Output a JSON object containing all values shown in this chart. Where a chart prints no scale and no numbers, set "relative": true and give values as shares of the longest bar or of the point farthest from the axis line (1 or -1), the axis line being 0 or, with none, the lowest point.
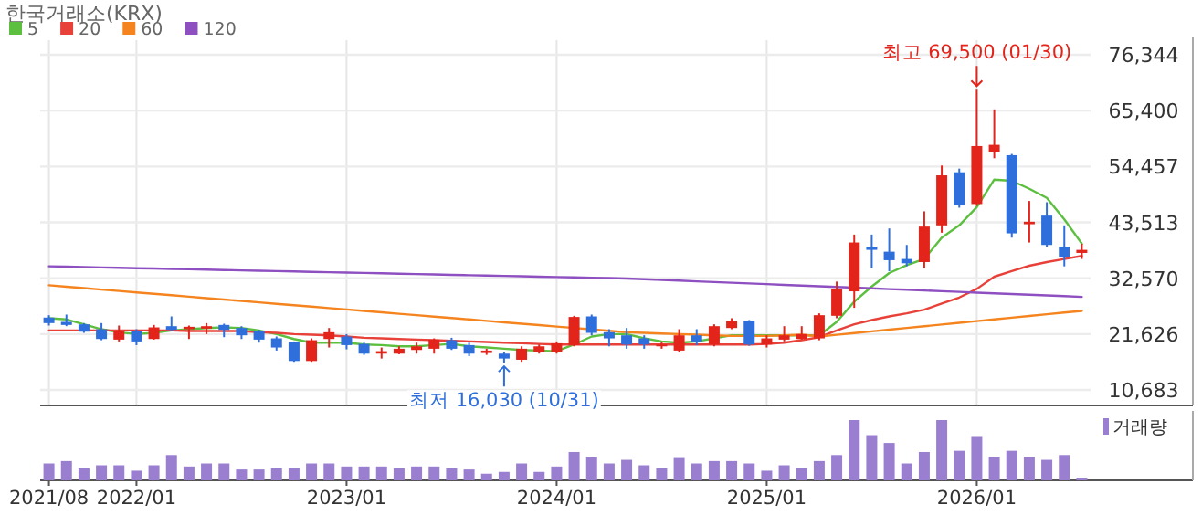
{
  "chart_data": [
    {
      "type": "candlestick",
      "title": "한국거래소(KRX)",
      "tick_labels": "y",
      "grid": true,
      "legend": "top left",
      "categories": [
        "2021/08",
        null,
        null,
        null,
        null,
        "2022/01",
        null,
        null,
        null,
        null,
        null,
        null,
        null,
        null,
        null,
        null,
        null,
        "2023/01",
        null,
        null,
        null,
        null,
        null,
        null,
        null,
        null,
        null,
        null,
        null,
        "2024/01",
        null,
        null,
        null,
        null,
        null,
        null,
        null,
        null,
        null,
        null,
        null,
        "2025/01",
        null,
        null,
        null,
        null,
        null,
        null,
        null,
        null,
        null,
        null,
        null,
        "2026/01",
        null,
        null,
        null,
        null,
        null,
        null
      ],
      "ylim": [
        7650,
        79200
      ],
      "yticks": [
        {
          "value": 10683,
          "label": "10,683"
        },
        {
          "value": 21626,
          "label": "21,626"
        },
        {
          "value": 32570,
          "label": "32,570"
        },
        {
          "value": 43513,
          "label": "43,513"
        },
        {
          "value": 54457,
          "label": "54,457"
        },
        {
          "value": 65400,
          "label": "65,400"
        },
        {
          "value": 76344,
          "label": "76,344"
        }
      ],
      "ohlc": [
        [
          24860,
          25330,
          23300,
          23780
        ],
        [
          24020,
          25450,
          23180,
          23420
        ],
        [
          23540,
          23780,
          21870,
          22100
        ],
        [
          22580,
          23780,
          20430,
          20670
        ],
        [
          20550,
          23300,
          20190,
          22220
        ],
        [
          22220,
          22580,
          19470,
          20190
        ],
        [
          20670,
          23420,
          20550,
          22940
        ],
        [
          23180,
          25090,
          22220,
          22460
        ],
        [
          22580,
          23300,
          20670,
          23060
        ],
        [
          22700,
          23780,
          21630,
          23180
        ],
        [
          23420,
          23660,
          21030,
          22460
        ],
        [
          22820,
          23180,
          20670,
          21390
        ],
        [
          22220,
          22460,
          19950,
          20550
        ],
        [
          20790,
          21150,
          18400,
          19000
        ],
        [
          20070,
          20190,
          16200,
          16360
        ],
        [
          16360,
          20790,
          16200,
          20430
        ],
        [
          20670,
          22820,
          19000,
          21990
        ],
        [
          21150,
          21630,
          18640,
          19470
        ],
        [
          19710,
          19950,
          17560,
          17800
        ],
        [
          17800,
          19000,
          16840,
          18280
        ],
        [
          17800,
          19230,
          17680,
          18760
        ],
        [
          18520,
          19950,
          17800,
          19230
        ],
        [
          18760,
          20790,
          17800,
          20550
        ],
        [
          20430,
          20910,
          18520,
          18760
        ],
        [
          19470,
          19950,
          17320,
          17800
        ],
        [
          17920,
          18760,
          17560,
          18400
        ],
        [
          17800,
          18040,
          16030,
          16840
        ],
        [
          16600,
          19230,
          16200,
          18760
        ],
        [
          18040,
          19590,
          17800,
          19230
        ],
        [
          18040,
          20190,
          17800,
          19830
        ],
        [
          19470,
          25210,
          19230,
          24980
        ],
        [
          25090,
          25450,
          21390,
          21870
        ],
        [
          21990,
          22580,
          19230,
          20790
        ],
        [
          21390,
          22820,
          18760,
          19590
        ],
        [
          20790,
          21390,
          18760,
          19590
        ],
        [
          19230,
          20190,
          18760,
          19590
        ],
        [
          18400,
          22580,
          18040,
          21390
        ],
        [
          21390,
          22580,
          19470,
          20190
        ],
        [
          19590,
          23540,
          19230,
          23180
        ],
        [
          22820,
          24740,
          22580,
          24140
        ],
        [
          24140,
          24380,
          19350,
          19590
        ],
        [
          19590,
          21390,
          19000,
          20790
        ],
        [
          20550,
          23180,
          20190,
          21390
        ],
        [
          20670,
          23180,
          20550,
          21630
        ],
        [
          20790,
          25690,
          20430,
          25330
        ],
        [
          25210,
          31910,
          24740,
          30480
        ],
        [
          30000,
          41120,
          26770,
          39570
        ],
        [
          38730,
          41120,
          34540,
          38130
        ],
        [
          37770,
          42320,
          33950,
          36100
        ],
        [
          36340,
          39090,
          34900,
          35500
        ],
        [
          35740,
          45670,
          34540,
          42680
        ],
        [
          42920,
          54640,
          41480,
          52720
        ],
        [
          53320,
          54040,
          46380,
          46980
        ],
        [
          47100,
          69500,
          46740,
          58460
        ],
        [
          57270,
          65640,
          56070,
          58700
        ],
        [
          56670,
          56910,
          40520,
          41360
        ],
        [
          43150,
          47700,
          39570,
          43630
        ],
        [
          44830,
          47460,
          38730,
          39090
        ],
        [
          38730,
          42920,
          34900,
          36700
        ],
        [
          37530,
          39330,
          36340,
          38130
        ]
      ],
      "colors": [
        "#2f6fdc",
        "#2f6fdc",
        "#2f6fdc",
        "#2f6fdc",
        "#e3241b",
        "#2f6fdc",
        "#e3241b",
        "#2f6fdc",
        "#e3241b",
        "#e3241b",
        "#2f6fdc",
        "#2f6fdc",
        "#2f6fdc",
        "#2f6fdc",
        "#2f6fdc",
        "#e3241b",
        "#e3241b",
        "#2f6fdc",
        "#2f6fdc",
        "#e3241b",
        "#e3241b",
        "#e3241b",
        "#e3241b",
        "#2f6fdc",
        "#2f6fdc",
        "#e3241b",
        "#2f6fdc",
        "#e3241b",
        "#e3241b",
        "#e3241b",
        "#e3241b",
        "#2f6fdc",
        "#2f6fdc",
        "#2f6fdc",
        "#2f6fdc",
        "#e3241b",
        "#e3241b",
        "#2f6fdc",
        "#e3241b",
        "#e3241b",
        "#2f6fdc",
        "#e3241b",
        "#e3241b",
        "#e3241b",
        "#e3241b",
        "#e3241b",
        "#e3241b",
        "#2f6fdc",
        "#2f6fdc",
        "#2f6fdc",
        "#e3241b",
        "#e3241b",
        "#2f6fdc",
        "#e3241b",
        "#e3241b",
        "#2f6fdc",
        "#e3241b",
        "#2f6fdc",
        "#2f6fdc",
        "#e3241b"
      ],
      "series": [
        {
          "name": "5",
          "type": "line",
          "color": "#5cbf3f",
          "values": [
            24740,
            24500,
            23540,
            22580,
            21990,
            21630,
            21870,
            22340,
            22580,
            22820,
            22940,
            22820,
            22340,
            21630,
            20670,
            19950,
            19950,
            19950,
            19590,
            19470,
            19230,
            19230,
            19470,
            19710,
            19230,
            19000,
            18760,
            18520,
            18400,
            18280,
            19590,
            21150,
            21630,
            21630,
            20790,
            20190,
            19950,
            20190,
            20790,
            21390,
            21390,
            21390,
            21390,
            21390,
            21390,
            24020,
            27970,
            30950,
            33590,
            35140,
            36340,
            40520,
            42920,
            46500,
            51890,
            51650,
            50090,
            48300,
            44110,
            39330
          ]
        },
        {
          "name": "20",
          "type": "line",
          "color": "#e8413a",
          "values": [
            22340,
            22340,
            22340,
            22340,
            22340,
            22340,
            22340,
            22340,
            22220,
            22220,
            22220,
            22220,
            21990,
            21870,
            21630,
            21510,
            21390,
            21150,
            20910,
            20790,
            20670,
            20550,
            20430,
            20310,
            20190,
            20070,
            19950,
            19830,
            19710,
            19590,
            19590,
            19590,
            19590,
            19590,
            19590,
            19590,
            19590,
            19590,
            19590,
            19590,
            19590,
            19710,
            19950,
            20430,
            21030,
            22340,
            23540,
            24380,
            25090,
            25690,
            26410,
            27610,
            28800,
            30480,
            32870,
            33950,
            35020,
            35740,
            36340,
            36940
          ]
        },
        {
          "name": "60",
          "type": "line",
          "color": "#f5841f",
          "values": [
            31190,
            30910,
            30630,
            30350,
            30070,
            29800,
            29520,
            29240,
            28960,
            28680,
            28400,
            28120,
            27840,
            27560,
            27290,
            27010,
            26730,
            26450,
            26170,
            25890,
            25610,
            25330,
            25050,
            24780,
            24500,
            24220,
            23940,
            23660,
            23380,
            23100,
            22830,
            22550,
            22270,
            21990,
            21870,
            21750,
            21630,
            21510,
            21390,
            21270,
            21270,
            21270,
            21390,
            21510,
            21150,
            21490,
            21820,
            22160,
            22490,
            22830,
            23160,
            23500,
            23830,
            24170,
            24500,
            24840,
            25170,
            25510,
            25840,
            26170
          ]
        },
        {
          "name": "120",
          "type": "line",
          "color": "#8e4fc1",
          "values": [
            34900,
            34830,
            34760,
            34680,
            34610,
            34540,
            34470,
            34400,
            34320,
            34250,
            34180,
            34110,
            34040,
            33960,
            33890,
            33820,
            33750,
            33680,
            33600,
            33530,
            33460,
            33390,
            33320,
            33240,
            33170,
            33100,
            33030,
            32960,
            32880,
            32810,
            32740,
            32670,
            32600,
            32510,
            32370,
            32240,
            32100,
            31960,
            31820,
            31690,
            31550,
            31410,
            31270,
            31130,
            31000,
            30860,
            30720,
            30580,
            30440,
            30310,
            30170,
            30030,
            29890,
            29750,
            29620,
            29480,
            29340,
            29200,
            29060,
            28920
          ]
        }
      ],
      "annotations": [
        {
          "text": "최고 69,500 (01/30)",
          "x": "2026/01",
          "y": 69500
        },
        "최저 16,030 (10/31)"
      ]
    },
    {
      "type": "bar",
      "relative": true,
      "tick_labels": "x",
      "legend": "right",
      "categories": [
        "2021/08",
        null,
        null,
        null,
        null,
        "2022/01",
        null,
        null,
        null,
        null,
        null,
        null,
        null,
        null,
        null,
        null,
        null,
        "2023/01",
        null,
        null,
        null,
        null,
        null,
        null,
        null,
        null,
        null,
        null,
        null,
        "2024/01",
        null,
        null,
        null,
        null,
        null,
        null,
        null,
        null,
        null,
        null,
        null,
        "2025/01",
        null,
        null,
        null,
        null,
        null,
        null,
        null,
        null,
        null,
        null,
        null,
        "2026/01",
        null,
        null,
        null,
        null,
        null,
        null
      ],
      "series": [
        {
          "name": "거래량",
          "color": "#9a7fd1",
          "values": [
            0.28,
            0.32,
            0.2,
            0.25,
            0.25,
            0.16,
            0.25,
            0.42,
            0.23,
            0.28,
            0.28,
            0.18,
            0.18,
            0.2,
            0.2,
            0.28,
            0.28,
            0.23,
            0.23,
            0.23,
            0.2,
            0.23,
            0.23,
            0.2,
            0.18,
            0.11,
            0.14,
            0.28,
            0.14,
            0.23,
            0.47,
            0.39,
            0.28,
            0.34,
            0.25,
            0.2,
            0.37,
            0.28,
            0.32,
            0.32,
            0.28,
            0.16,
            0.25,
            0.2,
            0.32,
            0.42,
            1,
            0.75,
            0.62,
            0.28,
            0.47,
            1,
            0.49,
            0.72,
            0.39,
            0.49,
            0.39,
            0.34,
            0.42,
            0.03
          ]
        }
      ]
    }
  ]
}
